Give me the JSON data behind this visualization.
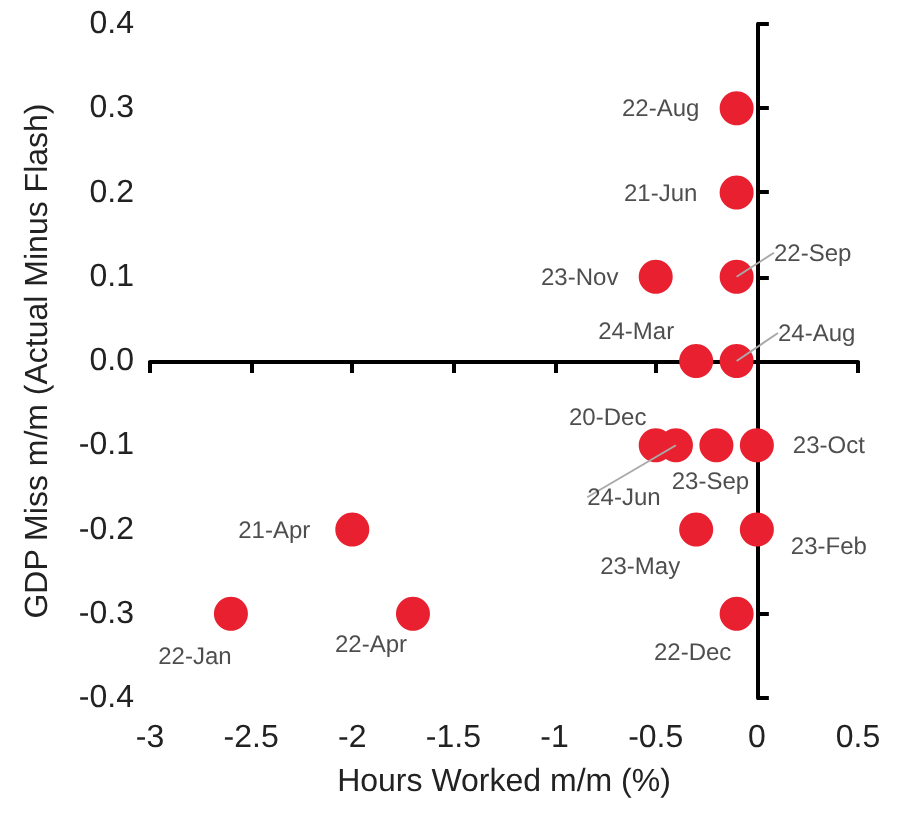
{
  "chart_data": {
    "type": "scatter",
    "xlabel": "Hours Worked m/m (%)",
    "ylabel": "GDP Miss m/m (Actual Minus Flash)",
    "x": [
      -0.1,
      -0.1,
      -0.5,
      -0.1,
      -0.3,
      -0.1,
      -0.5,
      -0.4,
      -0.2,
      0,
      -0.3,
      0,
      -0.1,
      -2.0,
      -2.6,
      -1.7
    ],
    "values": [
      0.3,
      0.2,
      0.1,
      0.1,
      0,
      0,
      -0.1,
      -0.1,
      -0.1,
      -0.1,
      -0.2,
      -0.2,
      -0.3,
      -0.2,
      -0.3,
      -0.3
    ],
    "color": "#e8202f",
    "marker": "circle",
    "xlim": [
      -3,
      0.5
    ],
    "xticks": [
      -3,
      -2.5,
      -2,
      -1.5,
      -1,
      -0.5,
      0,
      0.5
    ],
    "ylim": [
      -0.4,
      0.4
    ],
    "yticks": [
      -0.4,
      -0.3,
      -0.2,
      -0.1,
      {
        "value": 0,
        "label": "0.0"
      },
      0.1,
      0.2,
      0.3,
      0.4
    ],
    "annotations": [
      {
        "text": "22-Aug",
        "x": -0.1,
        "y": 0.3
      },
      {
        "text": "21-Jun",
        "x": -0.1,
        "y": 0.2
      },
      {
        "text": "23-Nov",
        "x": -0.5,
        "y": 0.1
      },
      {
        "text": "22-Sep",
        "x": -0.1,
        "y": 0.1
      },
      {
        "text": "24-Mar",
        "x": -0.3,
        "y": 0
      },
      {
        "text": "24-Aug",
        "x": -0.1,
        "y": 0
      },
      {
        "text": "20-Dec",
        "x": -0.5,
        "y": -0.1
      },
      {
        "text": "24-Jun",
        "x": -0.4,
        "y": -0.1
      },
      {
        "text": "23-Sep",
        "x": -0.2,
        "y": -0.1
      },
      {
        "text": "23-Oct",
        "x": 0,
        "y": -0.1
      },
      {
        "text": "23-May",
        "x": -0.3,
        "y": -0.2
      },
      {
        "text": "23-Feb",
        "x": 0,
        "y": -0.2
      },
      {
        "text": "22-Dec",
        "x": -0.1,
        "y": -0.3
      },
      {
        "text": "21-Apr",
        "x": -2.0,
        "y": -0.2
      },
      {
        "text": "22-Jan",
        "x": -2.6,
        "y": -0.3
      },
      {
        "text": "22-Apr",
        "x": -1.7,
        "y": -0.3
      }
    ]
  }
}
